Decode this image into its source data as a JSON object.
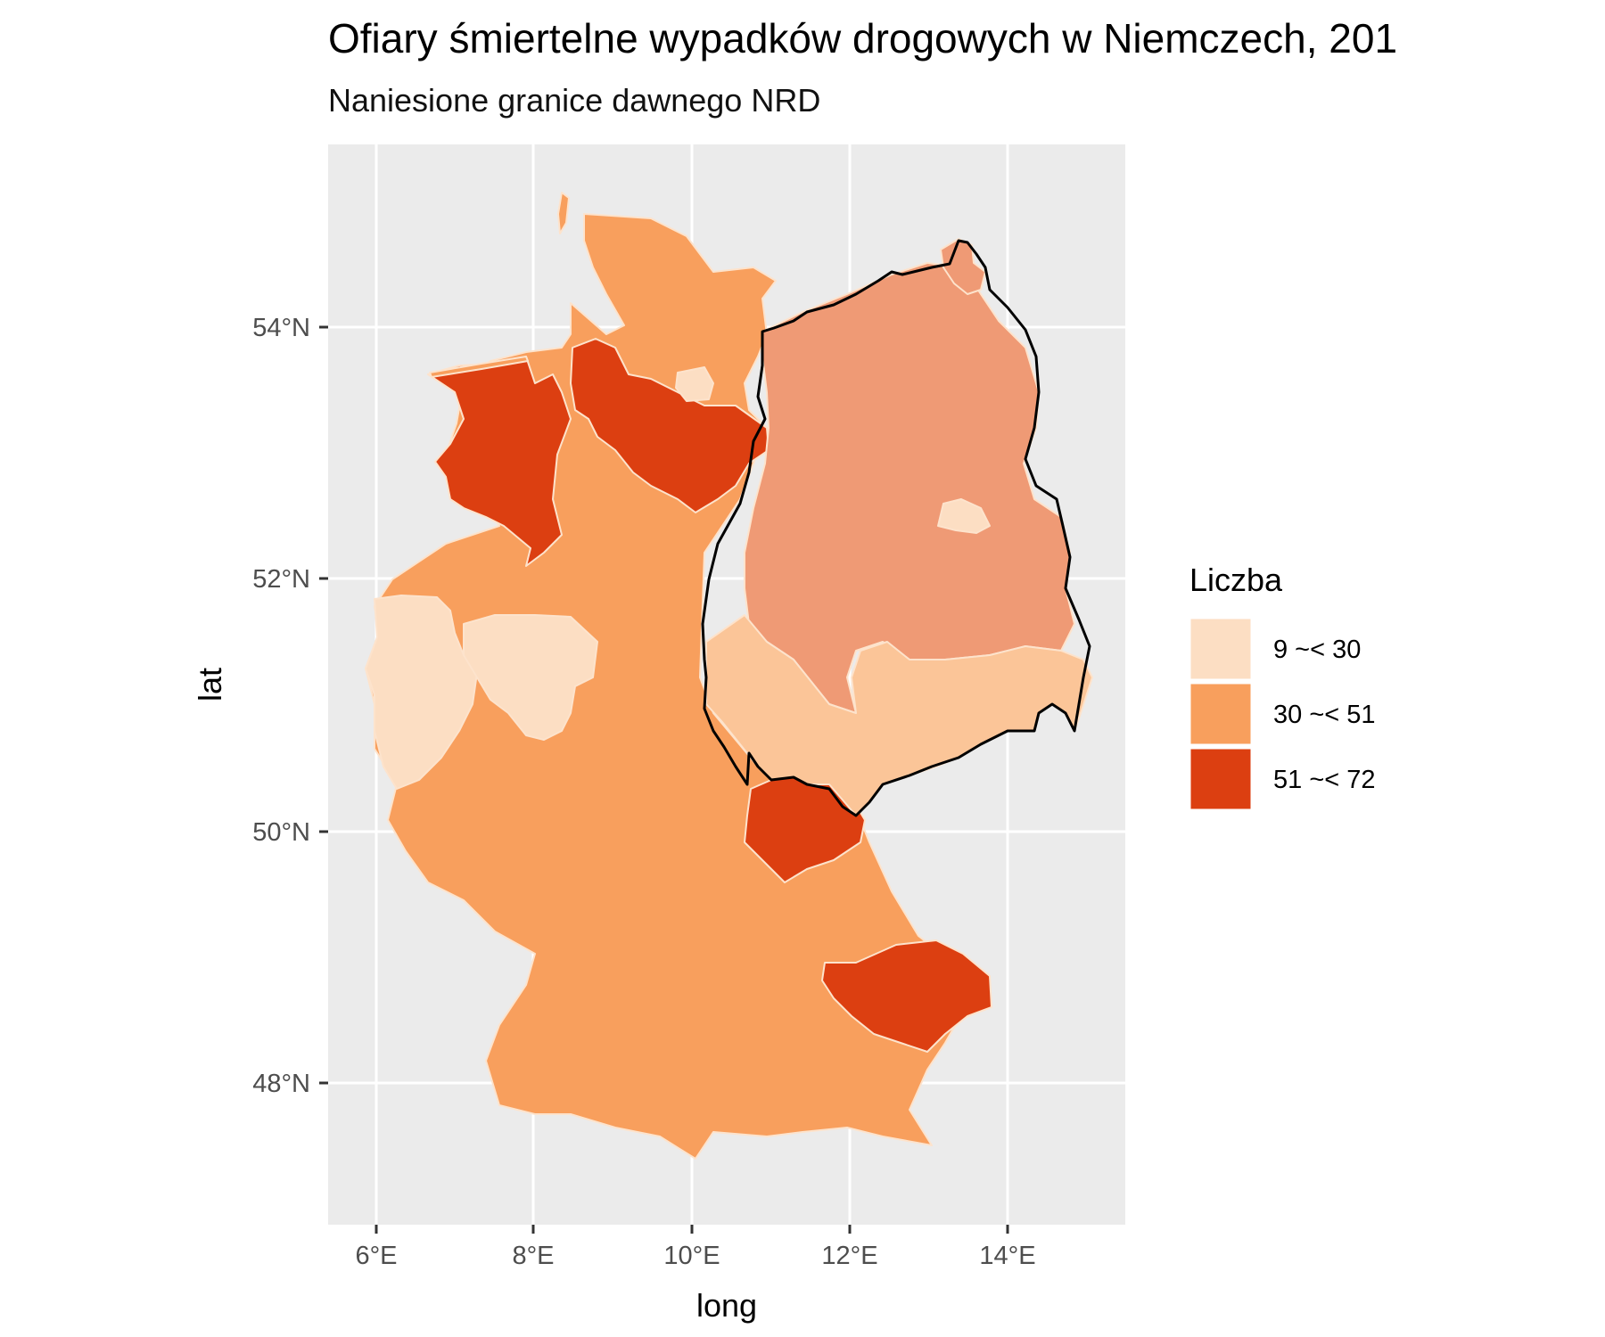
{
  "title": "Ofiary śmiertelne wypadków drogowych w Niemczech, 201",
  "subtitle": "Naniesione granice dawnego NRD",
  "axes": {
    "x_label": "long",
    "y_label": "lat",
    "x_ticks": [
      "6°E",
      "8°E",
      "10°E",
      "12°E",
      "14°E"
    ],
    "y_ticks": [
      "48°N",
      "50°N",
      "52°N",
      "54°N"
    ]
  },
  "legend": {
    "title": "Liczba",
    "items": [
      {
        "label": "9 ~< 30",
        "color": "#fcdec3"
      },
      {
        "label": "30 ~< 51",
        "color": "#f89f5d"
      },
      {
        "label": "51 ~< 72",
        "color": "#dc3f11"
      }
    ]
  },
  "colors": {
    "panel": "#ebebeb",
    "grid": "#ffffff",
    "nrd_regions": "#ef9a75",
    "nrd_south": "#fbc598",
    "nrd_border": "#000000"
  }
}
